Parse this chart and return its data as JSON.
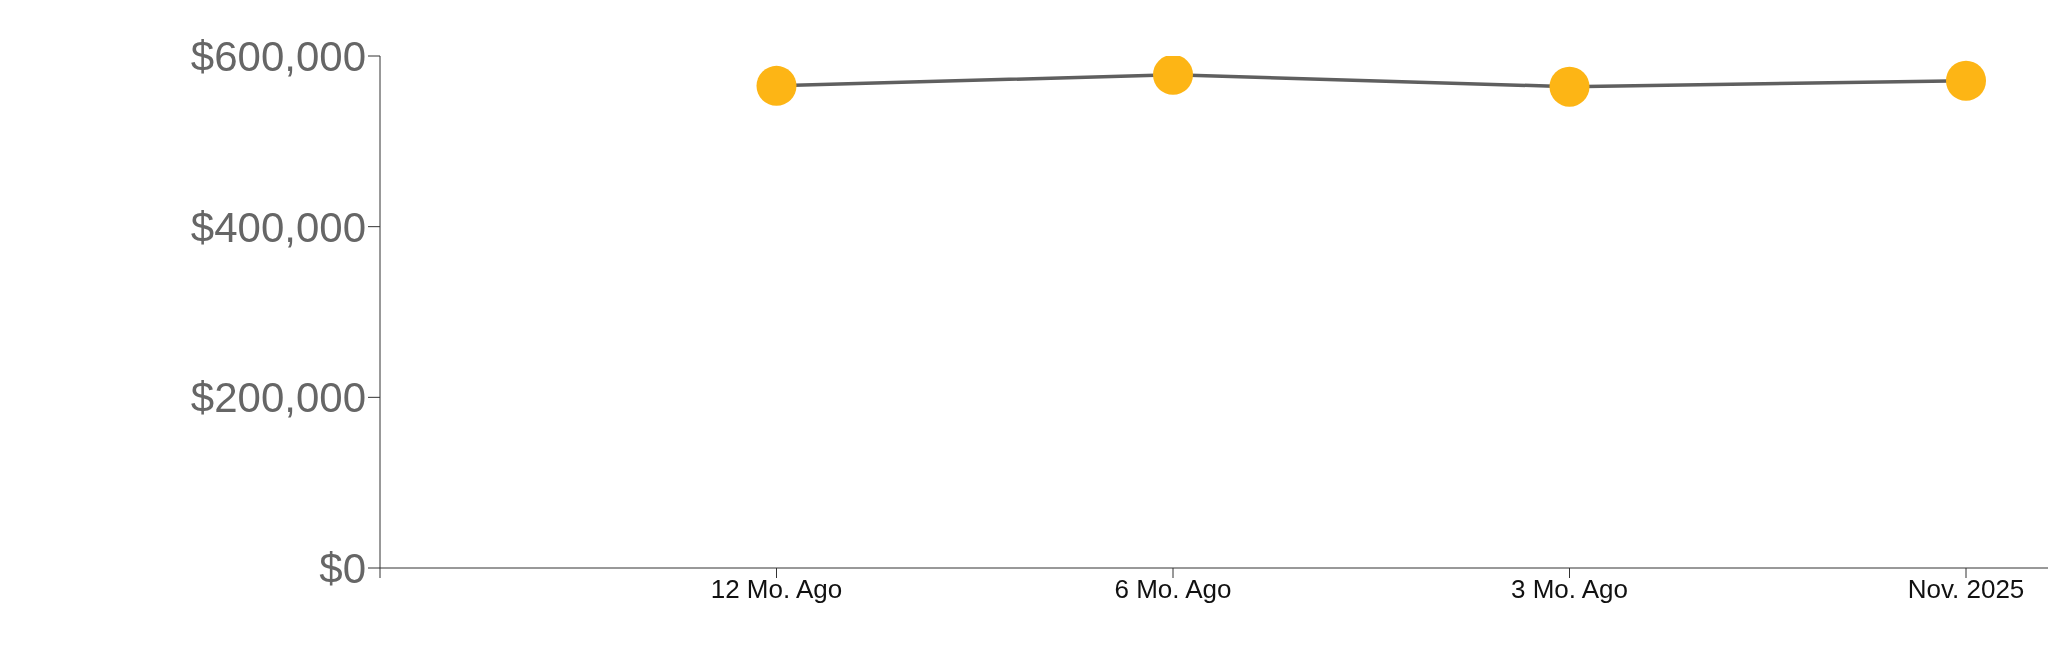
{
  "chart_data": {
    "type": "line",
    "categories": [
      null,
      "12 Mo. Ago",
      "6 Mo. Ago",
      "3 Mo. Ago",
      "Nov. 2025"
    ],
    "series": [
      {
        "color": "#5f5f5f",
        "values": [
          null,
          565000,
          578000,
          564000,
          571000
        ]
      }
    ],
    "marker": "circle",
    "grid": false,
    "ylim": [
      0,
      600000
    ],
    "yticks": [
      {
        "value": 0,
        "label": "$0"
      },
      {
        "value": 200000,
        "label": "$200,000"
      },
      {
        "value": 400000,
        "label": "$400,000"
      },
      {
        "value": 600000,
        "label": "$600,000"
      }
    ]
  }
}
